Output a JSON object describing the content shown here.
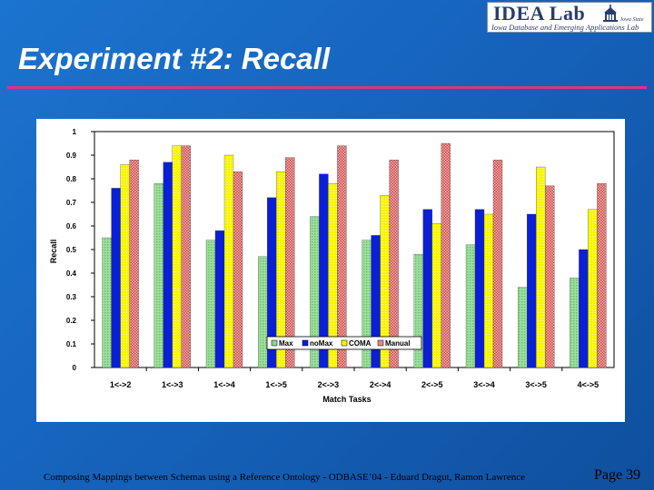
{
  "logo": {
    "title": "IDEA Lab",
    "subtitle": "Iowa Database and Emerging Applications Lab",
    "emblem_text": "Iowa State"
  },
  "slide": {
    "title": "Experiment #2: Recall",
    "footer": "Composing Mappings between Schemas using a Reference Ontology - ODBASE’04 - Eduard Dragut, Ramon Lawrence",
    "page": "Page 39"
  },
  "colors": {
    "background": "#1560b8",
    "title_rule": "#e0308c",
    "max": "#8fd28f",
    "nomax": "#0a1fd6",
    "coma": "#f4f400",
    "manual": "#e08a8a"
  },
  "chart_data": {
    "type": "bar",
    "title": "",
    "xlabel": "Match Tasks",
    "ylabel": "Recall",
    "ylim": [
      0,
      1
    ],
    "yticks": [
      "0",
      "0.1",
      "0.2",
      "0.3",
      "0.4",
      "0.5",
      "0.6",
      "0.7",
      "0.8",
      "0.9",
      "1"
    ],
    "categories": [
      "1<->2",
      "1<->3",
      "1<->4",
      "1<->5",
      "2<->3",
      "2<->4",
      "2<->5",
      "3<->4",
      "3<->5",
      "4<->5"
    ],
    "series": [
      {
        "name": "Max",
        "values": [
          0.55,
          0.78,
          0.54,
          0.47,
          0.64,
          0.54,
          0.48,
          0.52,
          0.34,
          0.38
        ]
      },
      {
        "name": "noMax",
        "values": [
          0.76,
          0.87,
          0.58,
          0.72,
          0.82,
          0.56,
          0.67,
          0.67,
          0.65,
          0.5
        ]
      },
      {
        "name": "COMA",
        "values": [
          0.86,
          0.94,
          0.9,
          0.83,
          0.78,
          0.73,
          0.61,
          0.65,
          0.85,
          0.67
        ]
      },
      {
        "name": "Manual",
        "values": [
          0.88,
          0.94,
          0.83,
          0.89,
          0.94,
          0.88,
          0.95,
          0.88,
          0.77,
          0.78
        ]
      }
    ],
    "legend": "inside-bottom-right",
    "grid": false
  }
}
